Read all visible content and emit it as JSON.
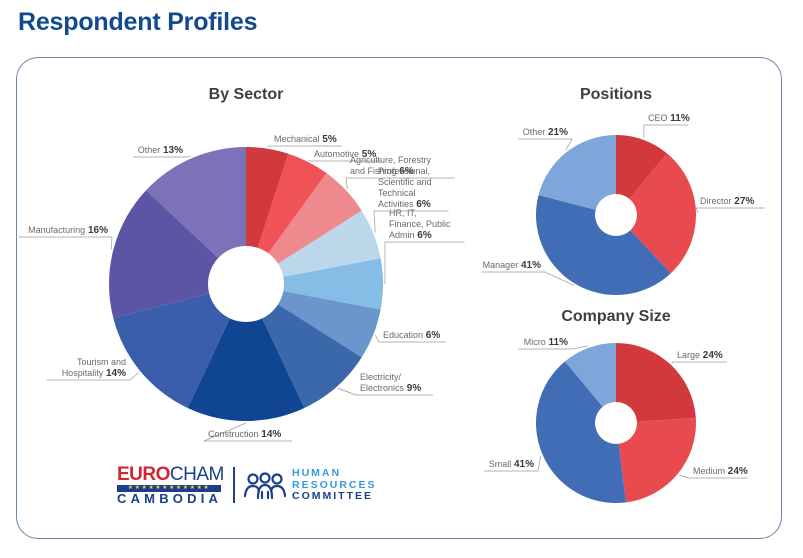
{
  "page": {
    "title": "Respondent Profiles"
  },
  "logo": {
    "eurocham_part1": "EURO",
    "eurocham_part2": "CHAM",
    "stars": "★★★★★★★★★★★★",
    "cambodia": "CAMBODIA",
    "hr_line1": "HUMAN",
    "hr_line2": "RESOURCES",
    "hr_line3": "COMMITTEE",
    "people_icon": "people-group-icon"
  },
  "chart_data": [
    {
      "type": "pie",
      "title": "By Sector",
      "donut": true,
      "start": "top (12 o'clock), clockwise",
      "labels": [
        "Mechanical",
        "Automotive",
        "Agriculture, Forestry and Fishing",
        "Professional, Scientific and Technical Activities",
        "HR, IT, Finance, Public Admin",
        "Education",
        "Electricity/ Electronics",
        "Construction",
        "Tourism and Hospitality",
        "Manufacturing",
        "Other"
      ],
      "label_lines": [
        [
          "Mechanical"
        ],
        [
          "Automotive"
        ],
        [
          "Agriculture, Forestry",
          "and Fishing"
        ],
        [
          "Professional,",
          "Scientific and",
          "Technical",
          "Activities"
        ],
        [
          "HR, IT,",
          "Finance, Public",
          "Admin"
        ],
        [
          "Education"
        ],
        [
          "Electricity/",
          "Electronics"
        ],
        [
          "Construction"
        ],
        [
          "Tourism and",
          "Hospitality"
        ],
        [
          "Manufacturing"
        ],
        [
          "Other"
        ]
      ],
      "values": [
        5,
        5,
        6,
        6,
        6,
        6,
        9,
        14,
        14,
        16,
        13
      ],
      "value_labels": [
        "5%",
        "5%",
        "6%",
        "6%",
        "6%",
        "6%",
        "9%",
        "14%",
        "14%",
        "16%",
        "13%"
      ],
      "colors": [
        "#d1393f",
        "#ef5257",
        "#ee8a8e",
        "#bcd7ea",
        "#86bde6",
        "#6b96cb",
        "#3b68ab",
        "#0f4593",
        "#3a5eab",
        "#5c55a6",
        "#7b72b8"
      ]
    },
    {
      "type": "pie",
      "title": "Positions",
      "donut": true,
      "start": "top (12 o'clock), clockwise",
      "labels": [
        "CEO",
        "Director",
        "Manager",
        "Other"
      ],
      "values": [
        11,
        27,
        41,
        21
      ],
      "value_labels": [
        "11%",
        "27%",
        "41%",
        "21%"
      ],
      "colors": [
        "#d1393f",
        "#e84b4f",
        "#406db6",
        "#7ea6da"
      ]
    },
    {
      "type": "pie",
      "title": "Company Size",
      "donut": true,
      "start": "top (12 o'clock), clockwise",
      "labels": [
        "Large",
        "Medium",
        "Small",
        "Micro"
      ],
      "values": [
        24,
        24,
        41,
        11
      ],
      "value_labels": [
        "24%",
        "24%",
        "41%",
        "11%"
      ],
      "colors": [
        "#d1393f",
        "#e84b4f",
        "#406db6",
        "#7ea6da"
      ]
    }
  ]
}
